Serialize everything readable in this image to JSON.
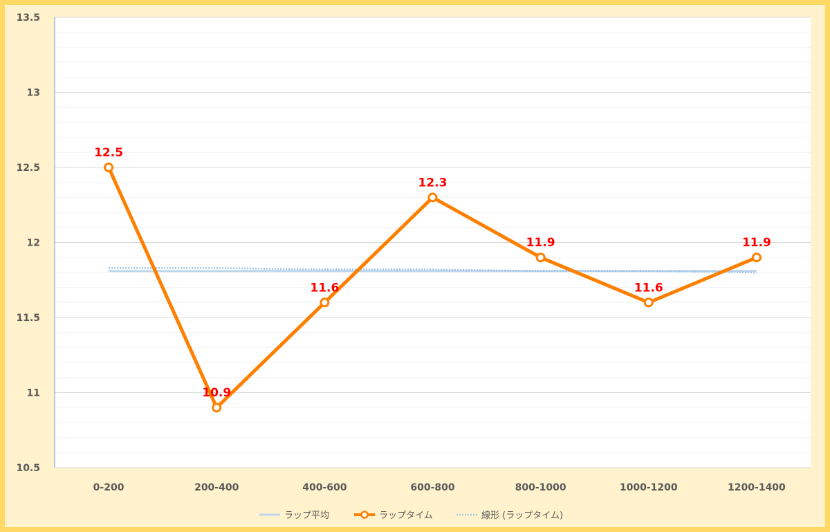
{
  "chart_data": {
    "type": "line",
    "categories": [
      "0-200",
      "200-400",
      "400-600",
      "600-800",
      "800-1000",
      "1000-1200",
      "1200-1400"
    ],
    "series": [
      {
        "name": "ラップ平均",
        "values": [
          11.81,
          11.81,
          11.81,
          11.81,
          11.81,
          11.81,
          11.81
        ],
        "color": "#bdd7ee",
        "style": "solid"
      },
      {
        "name": "ラップタイム",
        "values": [
          12.5,
          10.9,
          11.6,
          12.3,
          11.9,
          11.6,
          11.9
        ],
        "color": "#ff8000",
        "style": "solid-with-markers",
        "data_labels": [
          "12.5",
          "10.9",
          "11.6",
          "12.3",
          "11.9",
          "11.6",
          "11.9"
        ],
        "data_label_color": "#ff0000"
      },
      {
        "name": "線形 (ラップタイム)",
        "values": [
          11.83,
          11.83,
          11.82,
          11.82,
          11.81,
          11.81,
          11.8
        ],
        "color": "#9dc3e6",
        "style": "dotted"
      }
    ],
    "yticks": [
      "10.5",
      "11",
      "11.5",
      "12",
      "12.5",
      "13",
      "13.5"
    ],
    "ylim": [
      10.5,
      13.5
    ],
    "minor_grid_step": 0.1,
    "grid": true,
    "legend_position": "bottom",
    "title": "",
    "xlabel": "",
    "ylabel": ""
  }
}
